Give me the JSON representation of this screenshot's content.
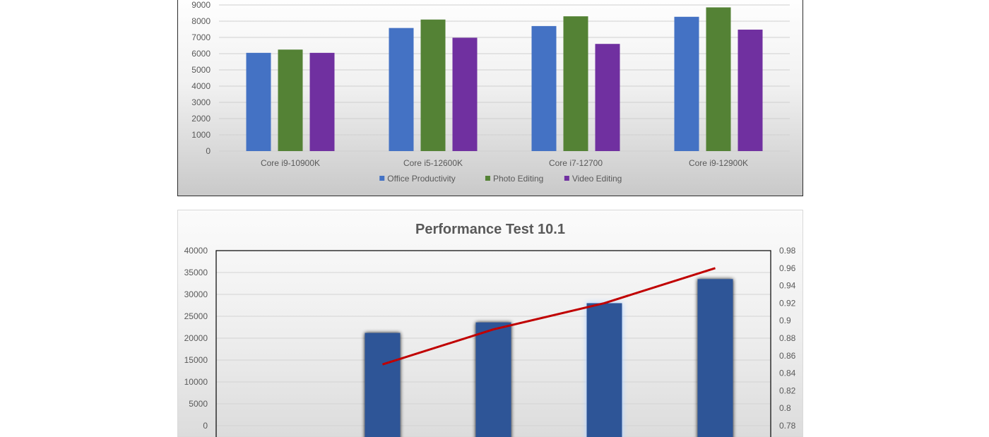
{
  "chart_data": [
    {
      "type": "bar",
      "title": "",
      "categories": [
        "Core i9-10900K",
        "Core i5-12600K",
        "Core i7-12700",
        "Core i9-12900K"
      ],
      "series": [
        {
          "name": "Office Productivity",
          "color": "#4472c4",
          "values": [
            6050,
            7580,
            7700,
            8270
          ]
        },
        {
          "name": "Photo Editing",
          "color": "#548235",
          "values": [
            6250,
            8100,
            8300,
            8850
          ]
        },
        {
          "name": "Video Editing",
          "color": "#7030a0",
          "values": [
            6050,
            6980,
            6600,
            7480
          ]
        }
      ],
      "ylim": [
        0,
        9000
      ],
      "y_ticks": [
        "0",
        "1000",
        "2000",
        "3000",
        "4000",
        "5000",
        "6000",
        "7000",
        "8000",
        "9000"
      ],
      "grid": true,
      "legend_position": "bottom"
    },
    {
      "type": "bar",
      "title": "Performance Test 10.1",
      "categories": [
        "",
        "",
        "",
        "",
        ""
      ],
      "series": [
        {
          "name": "",
          "type": "bar",
          "axis": "left",
          "color": "#2f5597",
          "values": [
            null,
            21200,
            23600,
            28000,
            33500
          ]
        },
        {
          "name": "",
          "type": "line",
          "axis": "right",
          "color": "#c00000",
          "values": [
            null,
            0.85,
            0.89,
            0.92,
            0.96
          ]
        }
      ],
      "ylim": [
        0,
        40000
      ],
      "y_ticks": [
        "0",
        "5000",
        "10000",
        "15000",
        "20000",
        "25000",
        "30000",
        "35000",
        "40000"
      ],
      "y2lim": [
        0.78,
        0.98
      ],
      "y2_ticks": [
        "0.78",
        "0.8",
        "0.82",
        "0.84",
        "0.86",
        "0.88",
        "0.9",
        "0.92",
        "0.94",
        "0.96",
        "0.98"
      ],
      "grid": true,
      "highlighted_category_index": 3
    }
  ]
}
